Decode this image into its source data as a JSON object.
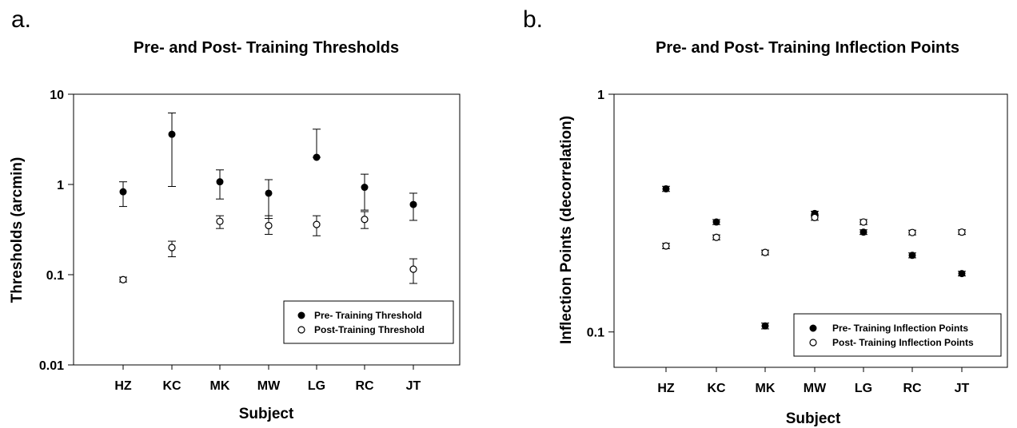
{
  "chart_data": [
    {
      "type": "scatter",
      "panel_label": "a.",
      "title": "Pre- and Post- Training Thresholds",
      "xlabel": "Subject",
      "ylabel": "Thresholds (arcmin)",
      "yscale": "log",
      "ylim": [
        0.01,
        10
      ],
      "yticks": [
        "0.01",
        "0.1",
        "1",
        "10"
      ],
      "yticks_values": [
        0.01,
        0.1,
        1,
        10
      ],
      "categories": [
        "HZ",
        "KC",
        "MK",
        "MW",
        "LG",
        "RC",
        "JT"
      ],
      "legend_placement": "bottom-right",
      "series": [
        {
          "name": "Pre- Training Threshold",
          "marker": "filled-circle",
          "values": [
            0.83,
            3.6,
            1.07,
            0.8,
            2.0,
            0.93,
            0.6
          ],
          "err_low": [
            0.57,
            0.95,
            0.69,
            0.42,
            2.0,
            0.52,
            0.4
          ],
          "err_high": [
            1.07,
            6.2,
            1.45,
            1.13,
            4.1,
            1.3,
            0.8
          ]
        },
        {
          "name": "Post-Training Threshold",
          "marker": "open-circle",
          "values": [
            0.088,
            0.2,
            0.39,
            0.35,
            0.36,
            0.41,
            0.115
          ],
          "err_low": [
            0.083,
            0.158,
            0.325,
            0.28,
            0.27,
            0.325,
            0.08
          ],
          "err_high": [
            0.094,
            0.235,
            0.45,
            0.45,
            0.45,
            0.5,
            0.15
          ]
        }
      ]
    },
    {
      "type": "scatter",
      "panel_label": "b.",
      "title": "Pre- and Post- Training Inflection Points",
      "xlabel": "Subject",
      "ylabel": "Inflection Points (decorrelation)",
      "yscale": "log",
      "ylim": [
        0.071,
        1
      ],
      "yticks": [
        "0.1",
        "1"
      ],
      "yticks_values": [
        0.1,
        1
      ],
      "categories": [
        "HZ",
        "KC",
        "MK",
        "MW",
        "LG",
        "RC",
        "JT"
      ],
      "legend_placement": "bottom-right",
      "series": [
        {
          "name": "Pre- Training Inflection Points",
          "marker": "filled-circle",
          "values": [
            0.4,
            0.29,
            0.106,
            0.315,
            0.263,
            0.21,
            0.176
          ],
          "err_low": [
            0.39,
            0.283,
            0.103,
            0.308,
            0.257,
            0.205,
            0.172
          ],
          "err_high": [
            0.41,
            0.297,
            0.109,
            0.322,
            0.269,
            0.215,
            0.18
          ]
        },
        {
          "name": "Post- Training Inflection Points",
          "marker": "open-circle",
          "values": [
            0.23,
            0.25,
            0.216,
            0.303,
            0.29,
            0.262,
            0.263
          ],
          "err_low": [
            0.224,
            0.244,
            0.211,
            0.295,
            0.283,
            0.256,
            0.257
          ],
          "err_high": [
            0.236,
            0.256,
            0.221,
            0.311,
            0.297,
            0.268,
            0.269
          ]
        }
      ]
    }
  ]
}
